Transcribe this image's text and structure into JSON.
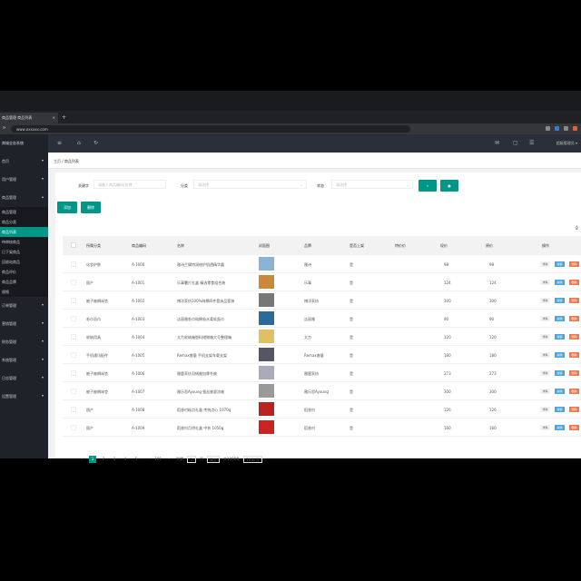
{
  "browser": {
    "tabs": [
      "商品管理",
      "商品列表"
    ],
    "url": "www.xxxxxx.com"
  },
  "sidebar": {
    "title": "商城业务系统",
    "items": [
      {
        "label": "首页"
      },
      {
        "label": "用户管理"
      },
      {
        "label": "商品管理",
        "open": true
      },
      {
        "label": "订单管理"
      },
      {
        "label": "营销管理"
      },
      {
        "label": "财务管理"
      },
      {
        "label": "系统管理"
      },
      {
        "label": "日志管理"
      },
      {
        "label": "设置管理"
      }
    ],
    "subitems": [
      {
        "label": "商品管理"
      },
      {
        "label": "商品分类"
      },
      {
        "label": "商品列表",
        "active": true
      },
      {
        "label": "待审核商品"
      },
      {
        "label": "已下架商品"
      },
      {
        "label": "回收站商品"
      },
      {
        "label": "商品评价"
      },
      {
        "label": "商品品牌"
      },
      {
        "label": "规格"
      }
    ]
  },
  "topbar": {
    "user": "超级管理员"
  },
  "breadcrumb": [
    "主页",
    "商品列表"
  ],
  "search": {
    "keyword_label": "关键字",
    "keyword_placeholder": "请输入商品编码/名称",
    "category_label": "分类",
    "category_value": "请选择",
    "status_label": "状态",
    "status_value": "请选择"
  },
  "toolbar": {
    "add": "添加",
    "delete": "删除"
  },
  "table": {
    "headers": [
      "所属分类",
      "商品编码",
      "名称",
      "封面图",
      "品牌",
      "是否上架",
      "特价价",
      "现价",
      "原价",
      "操作"
    ],
    "rows": [
      {
        "cat": "化妆护肤",
        "code": "A-1000",
        "name": "雅诗兰黛特润修护肌透精华露",
        "img": "#8ab4d6",
        "brand": "雅诗",
        "status": "是",
        "cur": "98",
        "orig": "98"
      },
      {
        "cat": "国产",
        "code": "A-1001",
        "name": "乐事薯片礼盒 精选零食组合装",
        "img": "#c9883a",
        "brand": "乐事",
        "status": "是",
        "cur": "124",
        "orig": "124"
      },
      {
        "cat": "被子被褥床垫",
        "code": "A-1002",
        "name": "博洋家纺100%纯棉四件套床品套装",
        "img": "#777",
        "brand": "博洋家纺",
        "status": "是",
        "cur": "300",
        "orig": "300"
      },
      {
        "cat": "毛巾浴巾",
        "code": "A-1003",
        "name": "洁丽雅毛巾纯棉吸水柔软面巾",
        "img": "#2a6b9a",
        "brand": "洁丽雅",
        "status": "是",
        "cur": "90",
        "orig": "90"
      },
      {
        "cat": "收纳用具",
        "code": "A-1004",
        "name": "太力收纳箱塑料储物箱大号整理箱",
        "img": "#e0c060",
        "brand": "太力",
        "status": "是",
        "cur": "120",
        "orig": "120"
      },
      {
        "cat": "手机通讯配件",
        "code": "A-1005",
        "name": "Remax睿量 手机支架车载支架",
        "img": "#556",
        "brand": "Remax睿量",
        "status": "是",
        "cur": "180",
        "orig": "180"
      },
      {
        "cat": "被子被褥床垫",
        "code": "A-1006",
        "name": "雅鹿家纺羽绒被加厚冬被",
        "img": "#aab",
        "brand": "雅鹿家纺",
        "status": "是",
        "cur": "273",
        "orig": "273"
      },
      {
        "cat": "被子被褥床垫",
        "code": "A-1007",
        "name": "雅乐思Ayoung 蚕丝被夏凉被",
        "img": "#999",
        "brand": "雅乐思Ayoung",
        "status": "是",
        "cur": "300",
        "orig": "300"
      },
      {
        "cat": "国产",
        "code": "A-1008",
        "name": "稻香村糕点礼盒 传统点心 1070g",
        "img": "#b22",
        "brand": "稻香村",
        "status": "是",
        "cur": "126",
        "orig": "126"
      },
      {
        "cat": "国产",
        "code": "A-1009",
        "name": "稻香村月饼礼盒 中秋 1050g",
        "img": "#c22",
        "brand": "稻香村",
        "status": "是",
        "cur": "160",
        "orig": "160"
      }
    ],
    "actions": {
      "detail": "详情",
      "edit": "编辑",
      "delete": "删除"
    },
    "action_colors": {
      "edit": "#4aa6e0",
      "delete": "#f07848"
    }
  },
  "pagination": {
    "pages": [
      "1",
      "2",
      "3",
      "4",
      "5",
      "...",
      "100"
    ],
    "current": "1",
    "goto_label": "到第",
    "page_unit": "页",
    "confirm": "确定",
    "total": "共1000条",
    "per_page": "10条/页"
  },
  "colors": {
    "accent": "#009688",
    "sidebar": "#1f2229",
    "header": "#2b2f3a"
  }
}
